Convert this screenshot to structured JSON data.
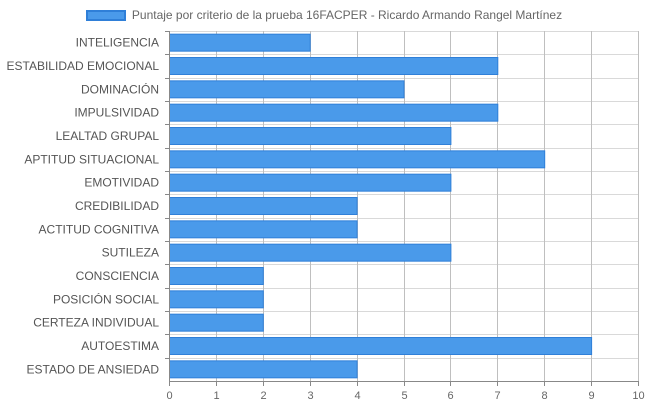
{
  "chart_data": {
    "type": "bar",
    "orientation": "horizontal",
    "categories": [
      "INTELIGENCIA",
      "ESTABILIDAD EMOCIONAL",
      "DOMINACIÓN",
      "IMPULSIVIDAD",
      "LEALTAD GRUPAL",
      "APTITUD SITUACIONAL",
      "EMOTIVIDAD",
      "CREDIBILIDAD",
      "ACTITUD COGNITIVA",
      "SUTILEZA",
      "CONSCIENCIA",
      "POSICIÓN SOCIAL",
      "CERTEZA INDIVIDUAL",
      "AUTOESTIMA",
      "ESTADO DE ANSIEDAD"
    ],
    "series": [
      {
        "name": "Puntaje por criterio de la prueba 16FACPER - Ricardo Armando Rangel Martínez",
        "values": [
          3,
          7,
          5,
          7,
          6,
          8,
          6,
          4,
          4,
          6,
          2,
          2,
          2,
          9,
          4
        ]
      }
    ],
    "xlim": [
      0,
      10
    ],
    "xticks": [
      "0",
      "1",
      "2",
      "3",
      "4",
      "5",
      "6",
      "7",
      "8",
      "9",
      "10"
    ],
    "grid": true,
    "legend_position": "top-center",
    "colors": {
      "bar_fill": "#4a9aea",
      "bar_border": "#2f7fd8",
      "grid": "#d9d9d9",
      "axis": "#888888",
      "tick_text": "#666666",
      "category_text": "#555555"
    }
  }
}
